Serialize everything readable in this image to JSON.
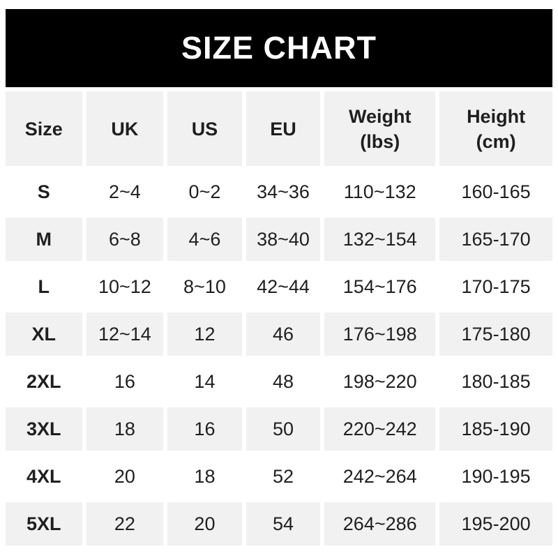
{
  "banner": {
    "title": "SIZE CHART"
  },
  "colors": {
    "banner_bg": "#000000",
    "banner_text": "#ffffff",
    "shade_row_bg": "#f1f1f1",
    "text": "#1f1f1f"
  },
  "table": {
    "headers": [
      {
        "line1": "Size",
        "line2": ""
      },
      {
        "line1": "UK",
        "line2": ""
      },
      {
        "line1": "US",
        "line2": ""
      },
      {
        "line1": "EU",
        "line2": ""
      },
      {
        "line1": "Weight",
        "line2": "(lbs)"
      },
      {
        "line1": "Height",
        "line2": "(cm)"
      }
    ],
    "rows": [
      [
        "S",
        "2~4",
        "0~2",
        "34~36",
        "110~132",
        "160-165"
      ],
      [
        "M",
        "6~8",
        "4~6",
        "38~40",
        "132~154",
        "165-170"
      ],
      [
        "L",
        "10~12",
        "8~10",
        "42~44",
        "154~176",
        "170-175"
      ],
      [
        "XL",
        "12~14",
        "12",
        "46",
        "176~198",
        "175-180"
      ],
      [
        "2XL",
        "16",
        "14",
        "48",
        "198~220",
        "180-185"
      ],
      [
        "3XL",
        "18",
        "16",
        "50",
        "220~242",
        "185-190"
      ],
      [
        "4XL",
        "20",
        "18",
        "52",
        "242~264",
        "190-195"
      ],
      [
        "5XL",
        "22",
        "20",
        "54",
        "264~286",
        "195-200"
      ]
    ]
  },
  "chart_data": {
    "type": "table",
    "title": "SIZE CHART",
    "columns": [
      "Size",
      "UK",
      "US",
      "EU",
      "Weight (lbs)",
      "Height (cm)"
    ],
    "rows": [
      [
        "S",
        "2~4",
        "0~2",
        "34~36",
        "110~132",
        "160-165"
      ],
      [
        "M",
        "6~8",
        "4~6",
        "38~40",
        "132~154",
        "165-170"
      ],
      [
        "L",
        "10~12",
        "8~10",
        "42~44",
        "154~176",
        "170-175"
      ],
      [
        "XL",
        "12~14",
        "12",
        "46",
        "176~198",
        "175-180"
      ],
      [
        "2XL",
        "16",
        "14",
        "48",
        "198~220",
        "180-185"
      ],
      [
        "3XL",
        "18",
        "16",
        "50",
        "220~242",
        "185-190"
      ],
      [
        "4XL",
        "20",
        "18",
        "52",
        "242~264",
        "190-195"
      ],
      [
        "5XL",
        "22",
        "20",
        "54",
        "264~286",
        "195-200"
      ]
    ]
  }
}
